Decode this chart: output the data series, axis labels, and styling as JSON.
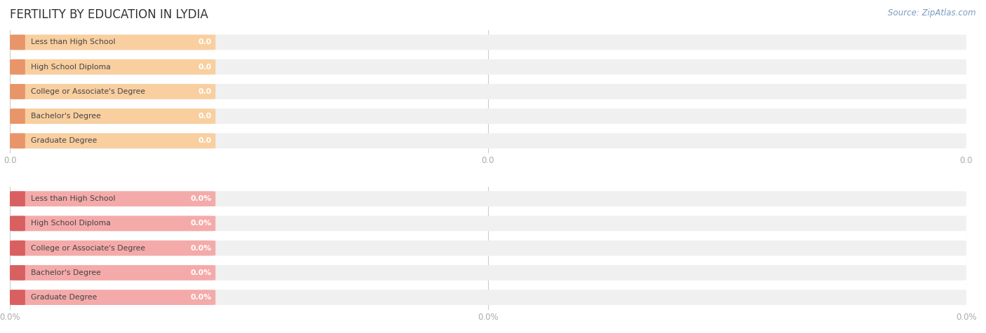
{
  "title": "FERTILITY BY EDUCATION IN LYDIA",
  "source_text": "Source: ZipAtlas.com",
  "categories": [
    "Less than High School",
    "High School Diploma",
    "College or Associate's Degree",
    "Bachelor's Degree",
    "Graduate Degree"
  ],
  "top_values": [
    0.0,
    0.0,
    0.0,
    0.0,
    0.0
  ],
  "bottom_values": [
    0.0,
    0.0,
    0.0,
    0.0,
    0.0
  ],
  "top_bar_color": "#F9CFA0",
  "top_bar_left_color": "#E8956A",
  "bottom_bar_color": "#F5AAAA",
  "bottom_bar_left_color": "#D96060",
  "bg_bar_color": "#F0F0F0",
  "title_fontsize": 12,
  "figsize": [
    14.06,
    4.76
  ],
  "dpi": 100,
  "x_ticks": [
    0.0,
    0.5,
    1.0
  ],
  "x_tick_labels_top": [
    "0.0",
    "0.0",
    "0.0"
  ],
  "x_tick_labels_bottom": [
    "0.0%",
    "0.0%",
    "0.0%"
  ]
}
